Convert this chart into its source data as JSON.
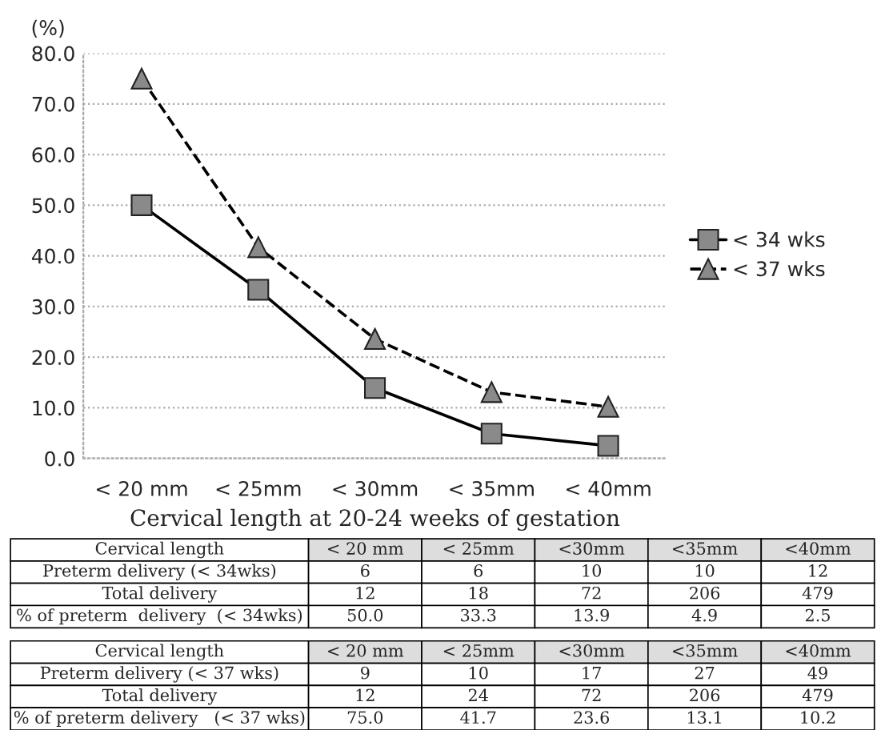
{
  "chart_data": {
    "type": "line",
    "ylabel": "(%)",
    "xlabel": "Cervical length at 20-24 weeks of gestation",
    "categories": [
      "< 20 mm",
      "< 25mm",
      "< 30mm",
      "< 35mm",
      "< 40mm"
    ],
    "series": [
      {
        "name": "< 34 wks",
        "color": "#000000",
        "marker": "square",
        "line_style": "solid",
        "values": [
          50.0,
          33.3,
          13.9,
          4.9,
          2.5
        ]
      },
      {
        "name": "< 37 wks",
        "color": "#000000",
        "marker": "triangle",
        "line_style": "dashed",
        "values": [
          75.0,
          41.7,
          23.6,
          13.1,
          10.2
        ]
      }
    ],
    "ylim": [
      0,
      80
    ],
    "yticks": [
      {
        "value": 0,
        "label": "0.0"
      },
      {
        "value": 10,
        "label": "10.0"
      },
      {
        "value": 20,
        "label": "20.0"
      },
      {
        "value": 30,
        "label": "30.0"
      },
      {
        "value": 40,
        "label": "40.0"
      },
      {
        "value": 50,
        "label": "50.0"
      },
      {
        "value": 60,
        "label": "60.0"
      },
      {
        "value": 70,
        "label": "70.0"
      },
      {
        "value": 80,
        "label": "80.0"
      }
    ],
    "grid": "y",
    "legend": "right",
    "annotations": [
      "Cervical length",
      "< 20 mm",
      "< 25mm",
      "<30mm",
      "<35mm",
      "<40mm",
      "Preterm delivery (< 34wks)",
      "6",
      "6",
      "10",
      "10",
      "12",
      "Total delivery",
      "12",
      "18",
      "72",
      "206",
      "479",
      "% of preterm  delivery  (< 34wks)",
      "50.0",
      "33.3",
      "13.9",
      "4.9",
      "2.5",
      "Cervical length",
      "< 20 mm",
      "< 25mm",
      "<30mm",
      "<35mm",
      "<40mm",
      "Preterm delivery (< 37 wks)",
      "9",
      "10",
      "17",
      "27",
      "49",
      "Total delivery",
      "12",
      "24",
      "72",
      "206",
      "479",
      "% of preterm delivery   (< 37 wks)",
      "75.0",
      "41.7",
      "23.6",
      "13.1",
      "10.2"
    ]
  }
}
